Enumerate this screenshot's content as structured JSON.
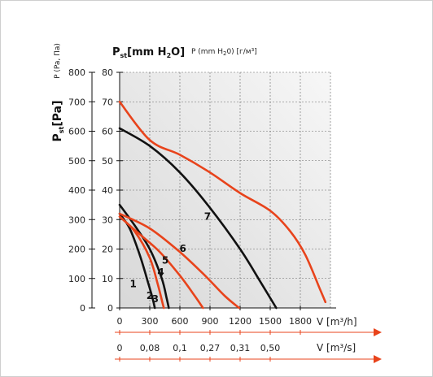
{
  "chart_data": {
    "type": "line",
    "title": "",
    "y_left_label_main": "P",
    "y_left_label_sub": "st",
    "y_left_label_unit": "[Pa]",
    "y_left_label_alt": "P (Pa, Па)",
    "y_right_label_main": "P",
    "y_right_label_sub": "st",
    "y_right_label_unit": "[mm H",
    "y_right_label_unit_sub": "2",
    "y_right_label_unit_end": "O]",
    "y_right_label_alt": "P (mm H",
    "y_right_label_alt_sub": "2",
    "y_right_label_alt_end": "0) [г/м³]",
    "x_label_flow": "V [m³/h]",
    "x_label_flow_s": "V [m³/s]",
    "y_ticks_pa": [
      "0",
      "100",
      "200",
      "300",
      "400",
      "500",
      "600",
      "700",
      "800"
    ],
    "y_ticks_mm": [
      "0",
      "10",
      "20",
      "30",
      "40",
      "50",
      "60",
      "70",
      "80"
    ],
    "x_ticks_m3h": [
      "0",
      "300",
      "600",
      "900",
      "1200",
      "1500",
      "1800"
    ],
    "x_ticks_m3s": [
      "0",
      "0,08",
      "0,1",
      "0,27",
      "0,31",
      "0,50"
    ],
    "xlim": [
      0,
      2100
    ],
    "ylim": [
      0,
      80
    ],
    "grid": true,
    "series": [
      {
        "name": "1",
        "color": "#111111",
        "label_at": [
          135,
          7
        ],
        "points": [
          [
            0,
            32
          ],
          [
            100,
            27
          ],
          [
            200,
            18
          ],
          [
            280,
            9
          ],
          [
            330,
            3
          ],
          [
            350,
            0
          ]
        ]
      },
      {
        "name": "2",
        "color": "#e8431b",
        "label_at": [
          300,
          3
        ],
        "points": [
          [
            0,
            31
          ],
          [
            150,
            26
          ],
          [
            300,
            17
          ],
          [
            380,
            8
          ],
          [
            425,
            2
          ],
          [
            440,
            0
          ]
        ]
      },
      {
        "name": "3",
        "color": "#111111",
        "label_at": [
          355,
          2
        ],
        "points": [
          [
            0,
            35
          ],
          [
            150,
            28
          ],
          [
            300,
            20
          ],
          [
            420,
            10
          ],
          [
            470,
            3
          ],
          [
            490,
            0
          ]
        ]
      },
      {
        "name": "4",
        "color": "#e8431b",
        "label_at": [
          410,
          11
        ],
        "points": [
          [
            0,
            31
          ],
          [
            200,
            25
          ],
          [
            400,
            19
          ],
          [
            600,
            11
          ],
          [
            750,
            4
          ],
          [
            830,
            0
          ]
        ]
      },
      {
        "name": "5",
        "color": "#e8431b",
        "label_at": [
          455,
          15
        ],
        "points": [
          [
            0,
            32
          ],
          [
            300,
            27
          ],
          [
            600,
            19
          ],
          [
            850,
            11
          ],
          [
            1050,
            4
          ],
          [
            1190,
            0
          ]
        ]
      },
      {
        "name": "6",
        "color": "#111111",
        "label_at": [
          630,
          19
        ],
        "points": [
          [
            0,
            61
          ],
          [
            300,
            55
          ],
          [
            600,
            46
          ],
          [
            900,
            34
          ],
          [
            1200,
            20
          ],
          [
            1400,
            9
          ],
          [
            1560,
            0
          ]
        ]
      },
      {
        "name": "7",
        "color": "#e8431b",
        "label_at": [
          875,
          30
        ],
        "points": [
          [
            0,
            70
          ],
          [
            300,
            57
          ],
          [
            600,
            52
          ],
          [
            900,
            46
          ],
          [
            1200,
            39
          ],
          [
            1500,
            33
          ],
          [
            1700,
            26
          ],
          [
            1850,
            18
          ],
          [
            2000,
            6
          ],
          [
            2050,
            2
          ]
        ]
      }
    ]
  }
}
